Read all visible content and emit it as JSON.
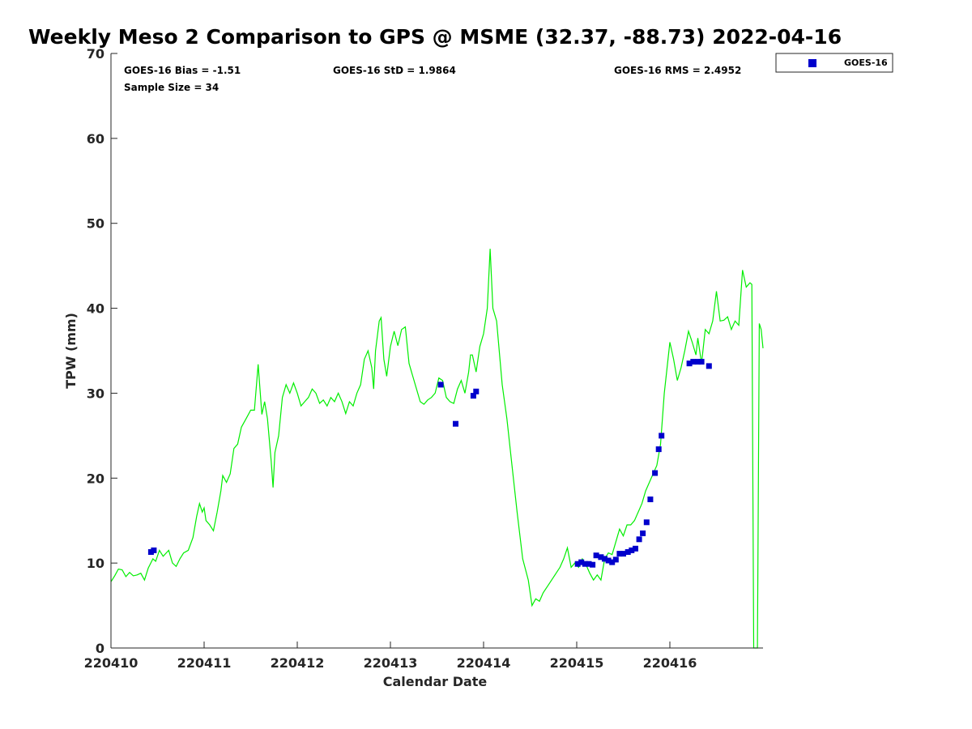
{
  "chart_data": {
    "type": "scatter",
    "title": "Weekly Meso 2 Comparison to GPS @ MSME (32.37, -88.73) 2022-04-16",
    "xlabel": "Calendar Date",
    "ylabel": "TPW (mm)",
    "xlim": [
      220410,
      220417
    ],
    "ylim": [
      0,
      70
    ],
    "x_ticks": [
      220410,
      220411,
      220412,
      220413,
      220414,
      220415,
      220416
    ],
    "x_tick_labels": [
      "220410",
      "220411",
      "220412",
      "220413",
      "220414",
      "220415",
      "220416"
    ],
    "y_ticks": [
      0,
      10,
      20,
      30,
      40,
      50,
      60,
      70
    ],
    "y_tick_labels": [
      "0",
      "10",
      "20",
      "30",
      "40",
      "50",
      "60",
      "70"
    ],
    "grid": false,
    "legend_placement": "top-right, outside plot",
    "stats": {
      "bias": "GOES-16 Bias = -1.51",
      "std": "GOES-16 StD = 1.9864",
      "rms": "GOES-16 RMS = 2.4952",
      "sample": "Sample Size = 34"
    },
    "series": [
      {
        "name": "GOES-16",
        "kind": "scatter",
        "color": "#0000cc",
        "marker": "square",
        "points": [
          [
            220410.43,
            11.3
          ],
          [
            220410.46,
            11.5
          ],
          [
            220413.54,
            31.0
          ],
          [
            220413.7,
            26.4
          ],
          [
            220413.89,
            29.7
          ],
          [
            220413.92,
            30.2
          ],
          [
            220415.01,
            9.9
          ],
          [
            220415.05,
            10.1
          ],
          [
            220415.09,
            9.9
          ],
          [
            220415.13,
            9.9
          ],
          [
            220415.17,
            9.8
          ],
          [
            220415.21,
            10.9
          ],
          [
            220415.26,
            10.7
          ],
          [
            220415.3,
            10.5
          ],
          [
            220415.34,
            10.3
          ],
          [
            220415.38,
            10.1
          ],
          [
            220415.42,
            10.4
          ],
          [
            220415.46,
            11.1
          ],
          [
            220415.5,
            11.1
          ],
          [
            220415.55,
            11.3
          ],
          [
            220415.59,
            11.5
          ],
          [
            220415.63,
            11.7
          ],
          [
            220415.67,
            12.8
          ],
          [
            220415.71,
            13.5
          ],
          [
            220415.75,
            14.8
          ],
          [
            220415.79,
            17.5
          ],
          [
            220415.84,
            20.6
          ],
          [
            220415.88,
            23.4
          ],
          [
            220415.91,
            25.0
          ],
          [
            220416.21,
            33.5
          ],
          [
            220416.25,
            33.7
          ],
          [
            220416.3,
            33.7
          ],
          [
            220416.34,
            33.7
          ],
          [
            220416.42,
            33.2
          ]
        ]
      },
      {
        "kind": "line",
        "color": "#00ee00",
        "points": [
          [
            220410.0,
            7.8
          ],
          [
            220410.04,
            8.5
          ],
          [
            220410.08,
            9.3
          ],
          [
            220410.12,
            9.2
          ],
          [
            220410.16,
            8.4
          ],
          [
            220410.2,
            8.9
          ],
          [
            220410.24,
            8.5
          ],
          [
            220410.28,
            8.6
          ],
          [
            220410.32,
            8.8
          ],
          [
            220410.36,
            8.0
          ],
          [
            220410.4,
            9.4
          ],
          [
            220410.45,
            10.5
          ],
          [
            220410.48,
            10.2
          ],
          [
            220410.52,
            11.5
          ],
          [
            220410.56,
            10.8
          ],
          [
            220410.62,
            11.5
          ],
          [
            220410.66,
            10.0
          ],
          [
            220410.7,
            9.6
          ],
          [
            220410.74,
            10.5
          ],
          [
            220410.78,
            11.2
          ],
          [
            220410.83,
            11.5
          ],
          [
            220410.88,
            13.0
          ],
          [
            220410.92,
            15.5
          ],
          [
            220410.95,
            17.0
          ],
          [
            220410.98,
            16.0
          ],
          [
            220411.0,
            16.5
          ],
          [
            220411.02,
            15.0
          ],
          [
            220411.06,
            14.5
          ],
          [
            220411.1,
            13.8
          ],
          [
            220411.14,
            16.0
          ],
          [
            220411.18,
            18.5
          ],
          [
            220411.2,
            20.3
          ],
          [
            220411.24,
            19.5
          ],
          [
            220411.28,
            20.5
          ],
          [
            220411.32,
            23.5
          ],
          [
            220411.36,
            24.0
          ],
          [
            220411.4,
            26.0
          ],
          [
            220411.45,
            27.0
          ],
          [
            220411.5,
            28.0
          ],
          [
            220411.54,
            28.0
          ],
          [
            220411.58,
            33.4
          ],
          [
            220411.62,
            27.5
          ],
          [
            220411.65,
            29.0
          ],
          [
            220411.68,
            27.0
          ],
          [
            220411.72,
            22.0
          ],
          [
            220411.74,
            18.9
          ],
          [
            220411.76,
            23.0
          ],
          [
            220411.8,
            25.0
          ],
          [
            220411.84,
            29.5
          ],
          [
            220411.88,
            31.0
          ],
          [
            220411.92,
            30.0
          ],
          [
            220411.96,
            31.2
          ],
          [
            220412.0,
            30.0
          ],
          [
            220412.04,
            28.5
          ],
          [
            220412.08,
            29.0
          ],
          [
            220412.12,
            29.5
          ],
          [
            220412.16,
            30.5
          ],
          [
            220412.2,
            30.0
          ],
          [
            220412.24,
            28.8
          ],
          [
            220412.28,
            29.2
          ],
          [
            220412.32,
            28.5
          ],
          [
            220412.36,
            29.5
          ],
          [
            220412.4,
            29.0
          ],
          [
            220412.44,
            30.0
          ],
          [
            220412.48,
            29.0
          ],
          [
            220412.52,
            27.6
          ],
          [
            220412.56,
            29.0
          ],
          [
            220412.6,
            28.5
          ],
          [
            220412.64,
            30.0
          ],
          [
            220412.68,
            31.0
          ],
          [
            220412.72,
            34.0
          ],
          [
            220412.76,
            35.0
          ],
          [
            220412.8,
            33.0
          ],
          [
            220412.82,
            30.5
          ],
          [
            220412.84,
            35.0
          ],
          [
            220412.88,
            38.5
          ],
          [
            220412.9,
            38.9
          ],
          [
            220412.93,
            34.0
          ],
          [
            220412.96,
            32.0
          ],
          [
            220413.0,
            35.5
          ],
          [
            220413.04,
            37.3
          ],
          [
            220413.08,
            35.6
          ],
          [
            220413.12,
            37.5
          ],
          [
            220413.16,
            37.8
          ],
          [
            220413.2,
            33.5
          ],
          [
            220413.24,
            32.0
          ],
          [
            220413.28,
            30.5
          ],
          [
            220413.32,
            29.0
          ],
          [
            220413.36,
            28.7
          ],
          [
            220413.4,
            29.2
          ],
          [
            220413.44,
            29.5
          ],
          [
            220413.48,
            30.0
          ],
          [
            220413.52,
            31.8
          ],
          [
            220413.56,
            31.5
          ],
          [
            220413.6,
            29.5
          ],
          [
            220413.64,
            29.0
          ],
          [
            220413.68,
            28.8
          ],
          [
            220413.72,
            30.5
          ],
          [
            220413.76,
            31.5
          ],
          [
            220413.8,
            30.0
          ],
          [
            220413.84,
            32.5
          ],
          [
            220413.86,
            34.5
          ],
          [
            220413.88,
            34.5
          ],
          [
            220413.92,
            32.5
          ],
          [
            220413.96,
            35.5
          ],
          [
            220414.0,
            37.0
          ],
          [
            220414.04,
            40.0
          ],
          [
            220414.07,
            47.0
          ],
          [
            220414.1,
            40.0
          ],
          [
            220414.14,
            38.5
          ],
          [
            220414.2,
            31.0
          ],
          [
            220414.25,
            27.0
          ],
          [
            220414.3,
            22.0
          ],
          [
            220414.36,
            16.0
          ],
          [
            220414.42,
            10.5
          ],
          [
            220414.48,
            8.0
          ],
          [
            220414.52,
            5.0
          ],
          [
            220414.56,
            5.8
          ],
          [
            220414.6,
            5.5
          ],
          [
            220414.64,
            6.5
          ],
          [
            220414.7,
            7.5
          ],
          [
            220414.76,
            8.5
          ],
          [
            220414.82,
            9.5
          ],
          [
            220414.86,
            10.5
          ],
          [
            220414.9,
            11.8
          ],
          [
            220414.94,
            9.5
          ],
          [
            220414.98,
            10.0
          ],
          [
            220415.02,
            9.5
          ],
          [
            220415.06,
            10.5
          ],
          [
            220415.1,
            9.8
          ],
          [
            220415.14,
            8.8
          ],
          [
            220415.18,
            8.0
          ],
          [
            220415.22,
            8.6
          ],
          [
            220415.26,
            8.0
          ],
          [
            220415.3,
            10.5
          ],
          [
            220415.34,
            11.2
          ],
          [
            220415.38,
            11.0
          ],
          [
            220415.42,
            12.5
          ],
          [
            220415.46,
            14.0
          ],
          [
            220415.5,
            13.2
          ],
          [
            220415.54,
            14.5
          ],
          [
            220415.58,
            14.5
          ],
          [
            220415.62,
            15.0
          ],
          [
            220415.66,
            16.0
          ],
          [
            220415.7,
            17.0
          ],
          [
            220415.74,
            18.5
          ],
          [
            220415.78,
            19.5
          ],
          [
            220415.82,
            20.5
          ],
          [
            220415.86,
            21.5
          ],
          [
            220415.9,
            24.0
          ],
          [
            220415.94,
            30.0
          ],
          [
            220415.98,
            34.0
          ],
          [
            220416.0,
            36.0
          ],
          [
            220416.04,
            34.0
          ],
          [
            220416.08,
            31.5
          ],
          [
            220416.12,
            33.0
          ],
          [
            220416.16,
            35.0
          ],
          [
            220416.2,
            37.3
          ],
          [
            220416.24,
            36.0
          ],
          [
            220416.28,
            34.5
          ],
          [
            220416.3,
            36.5
          ],
          [
            220416.34,
            33.5
          ],
          [
            220416.38,
            37.5
          ],
          [
            220416.42,
            37.0
          ],
          [
            220416.46,
            38.5
          ],
          [
            220416.5,
            42.0
          ],
          [
            220416.54,
            38.5
          ],
          [
            220416.58,
            38.6
          ],
          [
            220416.62,
            39.0
          ],
          [
            220416.66,
            37.5
          ],
          [
            220416.7,
            38.5
          ],
          [
            220416.74,
            38.0
          ],
          [
            220416.78,
            44.5
          ],
          [
            220416.82,
            42.5
          ],
          [
            220416.86,
            43.0
          ],
          [
            220416.88,
            42.8
          ],
          [
            220416.9,
            0.0
          ],
          [
            220416.94,
            0.0
          ],
          [
            220416.96,
            38.2
          ],
          [
            220416.98,
            37.5
          ],
          [
            220417.0,
            35.3
          ]
        ]
      }
    ]
  }
}
